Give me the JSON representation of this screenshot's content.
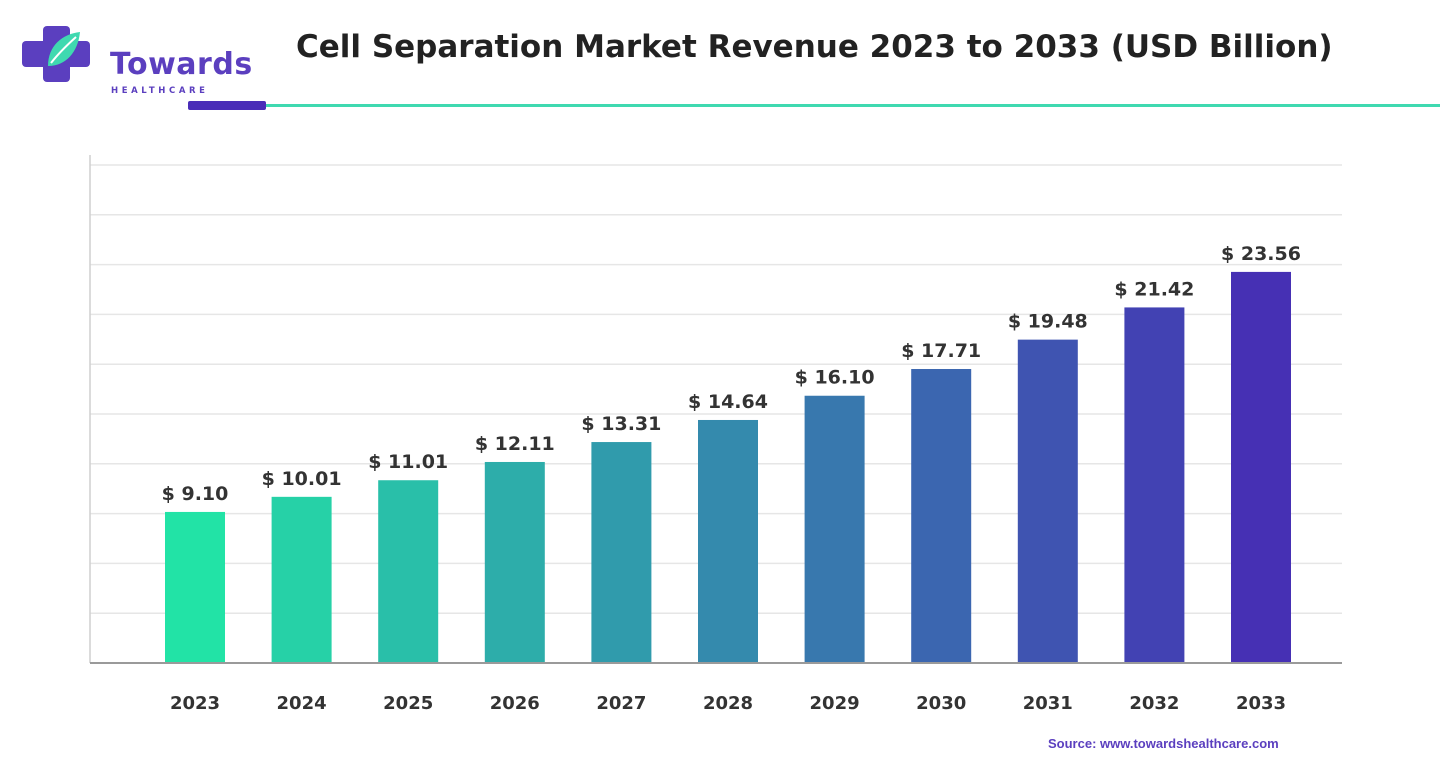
{
  "header": {
    "logo_main": "Towards",
    "logo_sub": "HEALTHCARE",
    "title": "Cell Separation Market Revenue 2023 to 2033 (USD Billion)"
  },
  "source_text": "Source: www.towardshealthcare.com",
  "colors": {
    "accent": "#4a2db8",
    "rule": "#3fd9b0",
    "bar_start": "#22e3a6",
    "bar_end": "#4630b4"
  },
  "chart_data": {
    "type": "bar",
    "categories": [
      "2023",
      "2024",
      "2025",
      "2026",
      "2027",
      "2028",
      "2029",
      "2030",
      "2031",
      "2032",
      "2033"
    ],
    "values": [
      9.1,
      10.01,
      11.01,
      12.11,
      13.31,
      14.64,
      16.1,
      17.71,
      19.48,
      21.42,
      23.56
    ],
    "labels": [
      "$ 9.10",
      "$ 10.01",
      "$ 11.01",
      "$ 12.11",
      "$ 13.31",
      "$ 14.64",
      "$ 16.10",
      "$ 17.71",
      "$ 19.48",
      "$ 21.42",
      "$ 23.56"
    ],
    "title": "Cell Separation Market Revenue 2023 to 2033 (USD Billion)",
    "xlabel": "",
    "ylabel": "",
    "ylim": [
      0,
      30
    ],
    "grid": true,
    "yticks_labeled": false
  }
}
